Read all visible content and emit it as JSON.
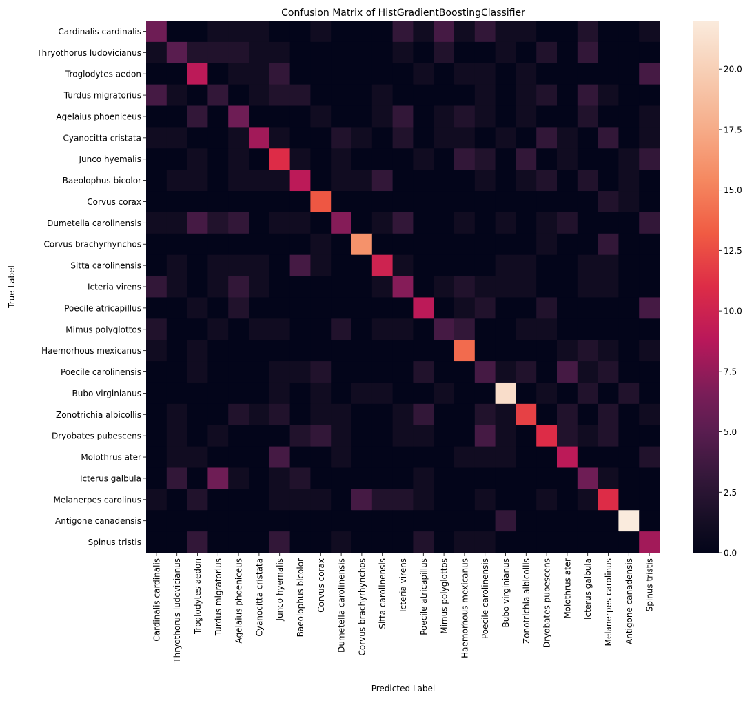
{
  "chart_data": {
    "type": "heatmap",
    "title": "Confusion Matrix of HistGradientBoostingClassifier",
    "xlabel": "Predicted Label",
    "ylabel": "True Label",
    "labels": [
      "Cardinalis cardinalis",
      "Thryothorus ludovicianus",
      "Troglodytes aedon",
      "Turdus migratorius",
      "Agelaius phoeniceus",
      "Cyanocitta cristata",
      "Junco hyemalis",
      "Baeolophus bicolor",
      "Corvus corax",
      "Dumetella carolinensis",
      "Corvus brachyrhynchos",
      "Sitta carolinensis",
      "Icteria virens",
      "Poecile atricapillus",
      "Mimus polyglottos",
      "Haemorhous mexicanus",
      "Poecile carolinensis",
      "Bubo virginianus",
      "Zonotrichia albicollis",
      "Dryobates pubescens",
      "Molothrus ater",
      "Icterus galbula",
      "Melanerpes carolinus",
      "Antigone canadensis",
      "Spinus tristis"
    ],
    "matrix": [
      [
        6,
        0,
        0,
        1,
        1,
        1,
        0,
        0,
        1,
        0,
        0,
        0,
        3,
        1,
        4,
        1,
        3,
        1,
        1,
        0,
        0,
        2,
        0,
        0,
        1
      ],
      [
        1,
        5,
        2,
        2,
        2,
        1,
        1,
        0,
        0,
        0,
        0,
        0,
        1,
        0,
        2,
        0,
        0,
        1,
        0,
        2,
        0,
        3,
        0,
        0,
        0
      ],
      [
        0,
        0,
        9,
        0,
        1,
        1,
        3,
        0,
        0,
        0,
        0,
        0,
        0,
        1,
        0,
        1,
        1,
        0,
        1,
        0,
        0,
        0,
        0,
        0,
        4
      ],
      [
        4,
        1,
        0,
        3,
        0,
        1,
        2,
        2,
        0,
        0,
        0,
        1,
        0,
        0,
        0,
        0,
        1,
        0,
        1,
        2,
        0,
        3,
        1,
        0,
        0
      ],
      [
        0,
        0,
        3,
        0,
        6,
        0,
        0,
        0,
        1,
        0,
        0,
        1,
        3,
        0,
        1,
        2,
        1,
        0,
        1,
        0,
        0,
        2,
        0,
        0,
        1
      ],
      [
        1,
        1,
        0,
        0,
        1,
        8,
        1,
        0,
        0,
        2,
        1,
        0,
        2,
        0,
        1,
        1,
        0,
        1,
        0,
        3,
        1,
        0,
        3,
        0,
        1
      ],
      [
        0,
        0,
        1,
        0,
        1,
        0,
        11,
        1,
        0,
        1,
        0,
        0,
        0,
        1,
        0,
        3,
        2,
        0,
        3,
        0,
        1,
        0,
        0,
        1,
        3
      ],
      [
        0,
        1,
        1,
        0,
        1,
        1,
        1,
        9,
        0,
        1,
        1,
        3,
        0,
        0,
        0,
        0,
        1,
        0,
        1,
        2,
        0,
        2,
        0,
        1,
        0
      ],
      [
        0,
        0,
        0,
        0,
        0,
        0,
        0,
        0,
        13,
        0,
        0,
        0,
        0,
        0,
        0,
        0,
        0,
        0,
        0,
        0,
        0,
        0,
        2,
        1,
        0
      ],
      [
        1,
        1,
        4,
        2,
        3,
        0,
        1,
        1,
        0,
        7,
        0,
        1,
        3,
        0,
        0,
        1,
        0,
        1,
        0,
        1,
        2,
        0,
        0,
        0,
        3
      ],
      [
        0,
        0,
        0,
        0,
        0,
        0,
        0,
        0,
        1,
        0,
        16,
        0,
        0,
        0,
        0,
        0,
        0,
        0,
        0,
        1,
        0,
        0,
        3,
        0,
        0
      ],
      [
        0,
        1,
        0,
        1,
        1,
        1,
        0,
        4,
        1,
        0,
        0,
        10,
        1,
        0,
        0,
        0,
        0,
        1,
        1,
        0,
        0,
        1,
        1,
        0,
        0
      ],
      [
        3,
        1,
        0,
        1,
        3,
        1,
        0,
        0,
        0,
        0,
        0,
        1,
        7,
        0,
        1,
        2,
        1,
        1,
        1,
        0,
        0,
        1,
        1,
        0,
        0
      ],
      [
        0,
        0,
        1,
        0,
        2,
        0,
        0,
        0,
        0,
        0,
        0,
        0,
        0,
        9,
        0,
        1,
        2,
        0,
        0,
        2,
        0,
        0,
        0,
        0,
        4
      ],
      [
        2,
        0,
        0,
        1,
        0,
        1,
        1,
        0,
        0,
        2,
        0,
        1,
        1,
        0,
        4,
        3,
        0,
        0,
        1,
        1,
        0,
        0,
        0,
        0,
        0
      ],
      [
        1,
        0,
        1,
        0,
        0,
        0,
        0,
        0,
        0,
        0,
        0,
        0,
        0,
        0,
        0,
        14,
        0,
        0,
        0,
        0,
        1,
        2,
        1,
        0,
        1
      ],
      [
        0,
        0,
        1,
        0,
        0,
        0,
        1,
        1,
        2,
        0,
        0,
        0,
        0,
        2,
        0,
        0,
        4,
        1,
        2,
        0,
        4,
        1,
        2,
        0,
        0
      ],
      [
        0,
        0,
        0,
        0,
        0,
        0,
        1,
        0,
        1,
        0,
        1,
        1,
        0,
        0,
        1,
        0,
        0,
        21,
        0,
        1,
        0,
        2,
        0,
        2,
        0
      ],
      [
        0,
        1,
        0,
        0,
        2,
        1,
        2,
        0,
        1,
        1,
        0,
        0,
        1,
        3,
        0,
        0,
        2,
        1,
        12,
        0,
        2,
        0,
        2,
        0,
        1
      ],
      [
        0,
        1,
        0,
        1,
        0,
        0,
        0,
        2,
        3,
        1,
        0,
        0,
        1,
        1,
        0,
        0,
        4,
        1,
        0,
        11,
        2,
        1,
        2,
        0,
        0
      ],
      [
        0,
        1,
        1,
        0,
        0,
        0,
        4,
        0,
        0,
        1,
        0,
        0,
        0,
        0,
        0,
        1,
        1,
        1,
        0,
        0,
        9,
        0,
        0,
        0,
        2
      ],
      [
        0,
        3,
        0,
        6,
        1,
        0,
        1,
        2,
        0,
        0,
        0,
        0,
        0,
        1,
        0,
        0,
        0,
        0,
        0,
        0,
        0,
        6,
        1,
        0,
        0
      ],
      [
        1,
        0,
        2,
        0,
        0,
        0,
        1,
        1,
        1,
        0,
        4,
        2,
        2,
        1,
        0,
        0,
        1,
        0,
        0,
        1,
        0,
        1,
        11,
        0,
        0
      ],
      [
        0,
        0,
        0,
        0,
        0,
        0,
        0,
        0,
        0,
        0,
        0,
        0,
        0,
        0,
        0,
        0,
        0,
        3,
        0,
        0,
        0,
        0,
        0,
        22,
        0
      ],
      [
        0,
        0,
        3,
        0,
        0,
        0,
        3,
        0,
        0,
        1,
        0,
        0,
        0,
        2,
        0,
        1,
        1,
        0,
        0,
        0,
        0,
        0,
        0,
        0,
        8
      ]
    ],
    "colorbar": {
      "range": [
        0,
        22
      ],
      "ticks": [
        "0.0",
        "2.5",
        "5.0",
        "7.5",
        "10.0",
        "12.5",
        "15.0",
        "17.5",
        "20.0"
      ],
      "colormap": "rocket",
      "colors": [
        "#03051a",
        "#120d22",
        "#331739",
        "#5a1d50",
        "#7a1d58",
        "#b9185a",
        "#dd2c47",
        "#f05b43",
        "#f58860",
        "#f6ad8a",
        "#f7cdb3",
        "#faebdd"
      ]
    },
    "grid": false
  }
}
